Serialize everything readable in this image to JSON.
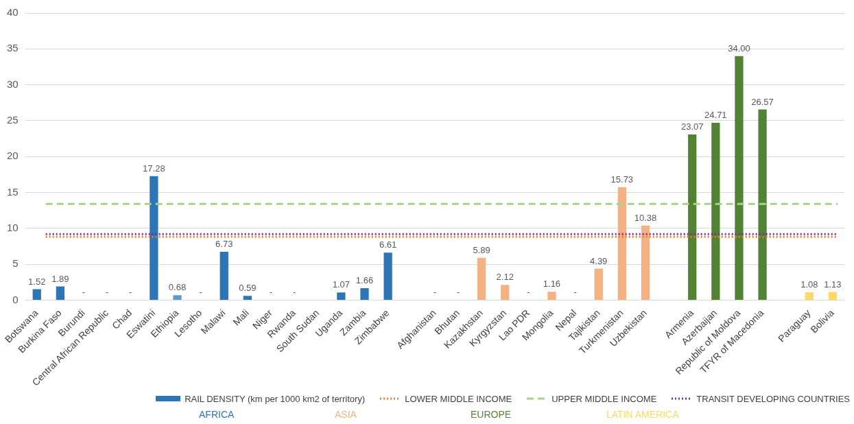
{
  "chart_data": {
    "type": "bar",
    "legend_title": "RAIL DENSITY (km per 1000 km2 of territory)",
    "categories": [
      "Botswana",
      "Burkina Faso",
      "Burundi",
      "Central African Republic",
      "Chad",
      "Eswatini",
      "Ethiopia",
      "Lesotho",
      "Malawi",
      "Mali",
      "Niger",
      "Rwanda",
      "South Sudan",
      "Uganda",
      "Zambia",
      "Zimbabwe",
      null,
      "Afghanistan",
      "Bhutan",
      "Kazakhstan",
      "Kyrgyzstan",
      "Lao PDR",
      "Mongolia",
      "Nepal",
      "Tajikistan",
      "Turkmenistan",
      "Uzbekistan",
      null,
      "Armenia",
      "Azerbaijan",
      "Republic of Moldova",
      "TFYR of Macedonia",
      null,
      "Paraguay",
      "Bolivia"
    ],
    "series": [
      {
        "name": "AFRICA",
        "color": "#2e75b6",
        "colors": [
          "#2e75b6",
          "#2e75b6",
          null,
          null,
          null,
          "#2e75b6",
          "#5b9bd5",
          null,
          "#2e75b6",
          "#2e75b6",
          null,
          null,
          null,
          "#2e75b6",
          "#2e75b6",
          "#2e75b6",
          null,
          null,
          null,
          null,
          null,
          null,
          null,
          null,
          null,
          null,
          null,
          null,
          null,
          null,
          null,
          null,
          null,
          null,
          null
        ],
        "values": [
          1.52,
          1.89,
          null,
          null,
          null,
          17.28,
          0.68,
          null,
          6.73,
          0.59,
          null,
          null,
          null,
          1.07,
          1.66,
          6.61,
          null,
          null,
          null,
          null,
          null,
          null,
          null,
          null,
          null,
          null,
          null,
          null,
          null,
          null,
          null,
          null,
          null,
          null,
          null
        ],
        "value_labels": [
          "1.52",
          "1.89",
          "-",
          "-",
          "-",
          "17.28",
          "0.68",
          "-",
          "6.73",
          "0.59",
          "-",
          "-",
          null,
          "1.07",
          "1.66",
          "6.61",
          null,
          null,
          null,
          null,
          null,
          null,
          null,
          null,
          null,
          null,
          null,
          null,
          null,
          null,
          null,
          null,
          null,
          null,
          null
        ]
      },
      {
        "name": "ASIA",
        "color": "#f4b183",
        "values": [
          null,
          null,
          null,
          null,
          null,
          null,
          null,
          null,
          null,
          null,
          null,
          null,
          null,
          null,
          null,
          null,
          null,
          null,
          null,
          5.89,
          2.12,
          null,
          1.16,
          null,
          4.39,
          15.73,
          10.38,
          null,
          null,
          null,
          null,
          null,
          null,
          null,
          null
        ],
        "value_labels": [
          null,
          null,
          null,
          null,
          null,
          null,
          null,
          null,
          null,
          null,
          null,
          null,
          null,
          null,
          null,
          null,
          null,
          "-",
          "-",
          "5.89",
          "2.12",
          "-",
          "1.16",
          "-",
          "4.39",
          "15.73",
          "10.38",
          null,
          null,
          null,
          null,
          null,
          null,
          null,
          null
        ]
      },
      {
        "name": "EUROPE",
        "color": "#548235",
        "values": [
          null,
          null,
          null,
          null,
          null,
          null,
          null,
          null,
          null,
          null,
          null,
          null,
          null,
          null,
          null,
          null,
          null,
          null,
          null,
          null,
          null,
          null,
          null,
          null,
          null,
          null,
          null,
          null,
          23.07,
          24.71,
          34.0,
          26.57,
          null,
          null,
          null
        ],
        "value_labels": [
          null,
          null,
          null,
          null,
          null,
          null,
          null,
          null,
          null,
          null,
          null,
          null,
          null,
          null,
          null,
          null,
          null,
          null,
          null,
          null,
          null,
          null,
          null,
          null,
          null,
          null,
          null,
          null,
          "23.07",
          "24.71",
          "34.00",
          "26.57",
          null,
          null,
          null
        ]
      },
      {
        "name": "LATIN AMERICA",
        "color": "#ffd966",
        "values": [
          null,
          null,
          null,
          null,
          null,
          null,
          null,
          null,
          null,
          null,
          null,
          null,
          null,
          null,
          null,
          null,
          null,
          null,
          null,
          null,
          null,
          null,
          null,
          null,
          null,
          null,
          null,
          null,
          null,
          null,
          null,
          null,
          null,
          1.08,
          1.13
        ],
        "value_labels": [
          null,
          null,
          null,
          null,
          null,
          null,
          null,
          null,
          null,
          null,
          null,
          null,
          null,
          null,
          null,
          null,
          null,
          null,
          null,
          null,
          null,
          null,
          null,
          null,
          null,
          null,
          null,
          null,
          null,
          null,
          null,
          null,
          null,
          "1.08",
          "1.13"
        ]
      }
    ],
    "ref_lines": [
      {
        "axis": "y",
        "value": 8.8,
        "label": "LOWER MIDDLE INCOME",
        "color": "#ed7d31",
        "line_style": "dotted"
      },
      {
        "axis": "y",
        "value": 13.4,
        "label": "UPPER MIDDLE INCOME",
        "color": "#a9d18e",
        "line_style": "dashed"
      },
      {
        "axis": "y",
        "value": 9.2,
        "label": "TRANSIT DEVELOPING COUNTRIES",
        "color": "#7030a0",
        "line_style": "dotted"
      }
    ],
    "ylim": [
      0,
      40
    ],
    "yticks": [
      0,
      5,
      10,
      15,
      20,
      25,
      30,
      35,
      40
    ],
    "grid": "y",
    "legend": "bottom"
  }
}
